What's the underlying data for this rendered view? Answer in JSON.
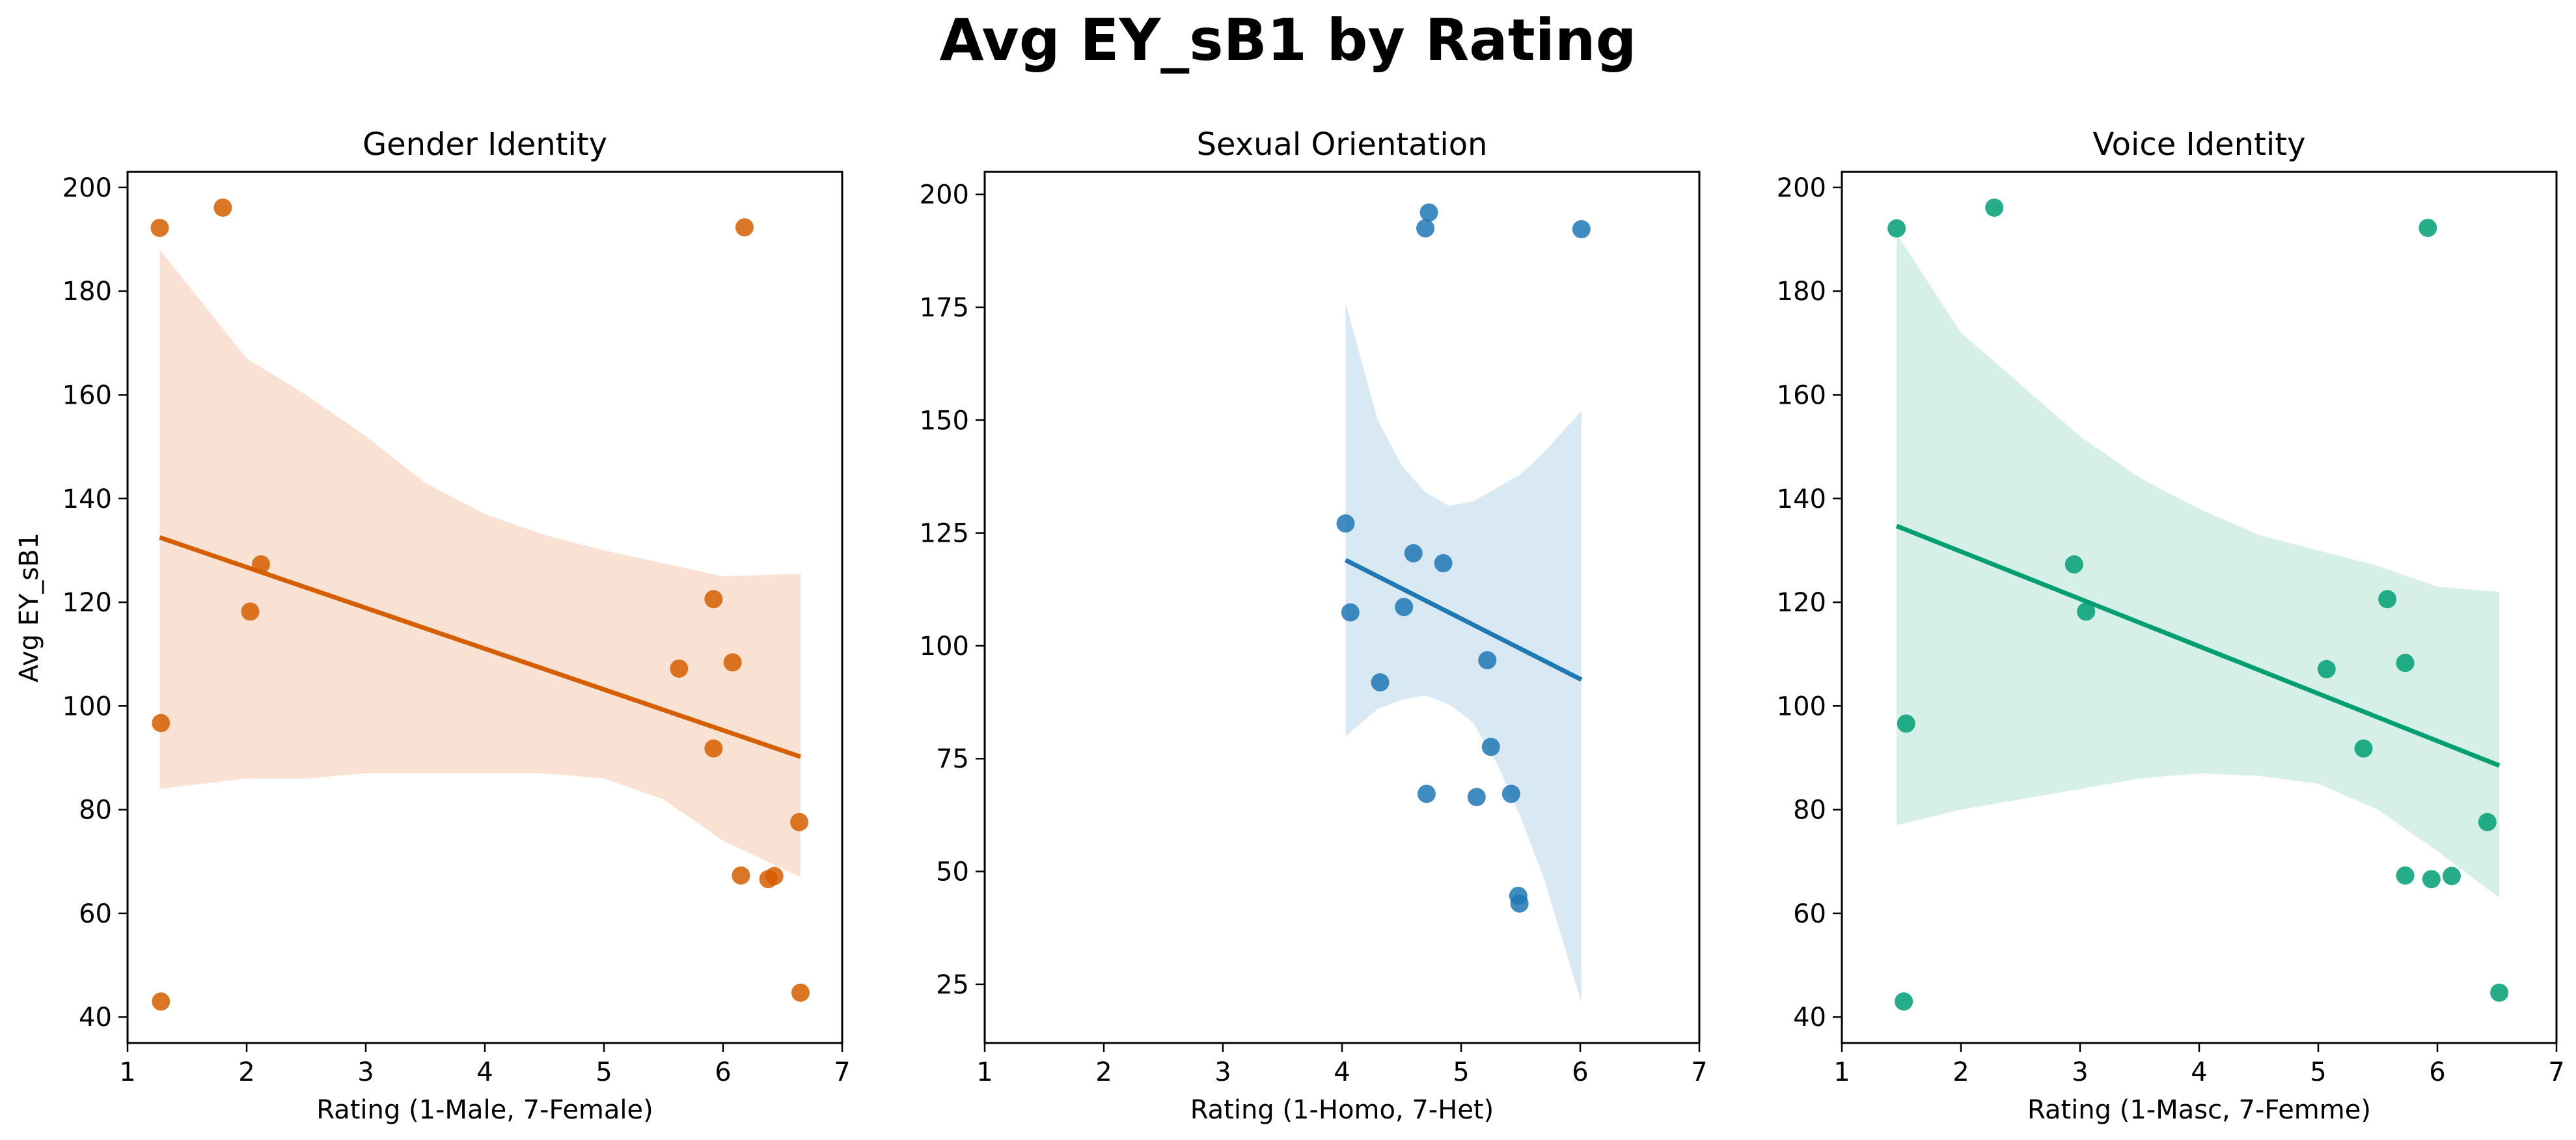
{
  "chart_data": {
    "title": "Avg EY_sB1 by Rating",
    "panels": [
      {
        "type": "scatter",
        "title": "Gender Identity",
        "xlabel": "Rating (1-Male, 7-Female)",
        "ylabel": "Avg EY_sB1",
        "xlim": [
          1,
          7
        ],
        "ylim": [
          35,
          203
        ],
        "xticks": [
          1,
          2,
          3,
          4,
          5,
          6,
          7
        ],
        "yticks": [
          40,
          60,
          80,
          100,
          120,
          140,
          160,
          180,
          200
        ],
        "color": "#d55e00",
        "band_color": "#f9e2d3",
        "points": [
          {
            "x": 1.27,
            "y": 192.2
          },
          {
            "x": 1.8,
            "y": 196.1
          },
          {
            "x": 6.18,
            "y": 192.3
          },
          {
            "x": 2.12,
            "y": 127.3
          },
          {
            "x": 2.03,
            "y": 118.2
          },
          {
            "x": 1.28,
            "y": 96.7
          },
          {
            "x": 1.28,
            "y": 43.0
          },
          {
            "x": 5.92,
            "y": 120.6
          },
          {
            "x": 5.63,
            "y": 107.2
          },
          {
            "x": 6.08,
            "y": 108.4
          },
          {
            "x": 5.92,
            "y": 91.8
          },
          {
            "x": 6.15,
            "y": 67.3
          },
          {
            "x": 6.38,
            "y": 66.6
          },
          {
            "x": 6.43,
            "y": 67.2
          },
          {
            "x": 6.64,
            "y": 77.6
          },
          {
            "x": 6.65,
            "y": 44.7
          }
        ],
        "fit": {
          "x": [
            1.27,
            6.65
          ],
          "y": [
            132.5,
            90.2
          ]
        },
        "band": {
          "x": [
            1.27,
            2.0,
            2.5,
            3.0,
            3.5,
            4.0,
            4.5,
            5.0,
            5.5,
            6.0,
            6.65
          ],
          "upper": [
            188.0,
            167.0,
            160.0,
            152.0,
            143.0,
            137.0,
            133.0,
            130.0,
            127.5,
            125.0,
            125.5
          ],
          "lower": [
            84.0,
            86.0,
            86.0,
            87.0,
            87.0,
            87.0,
            87.0,
            86.0,
            82.0,
            74.0,
            67.0
          ]
        }
      },
      {
        "type": "scatter",
        "title": "Sexual Orientation",
        "xlabel": "Rating (1-Homo, 7-Het)",
        "ylabel": "",
        "xlim": [
          1,
          7
        ],
        "ylim": [
          12,
          205
        ],
        "xticks": [
          1,
          2,
          3,
          4,
          5,
          6,
          7
        ],
        "yticks": [
          25,
          50,
          75,
          100,
          125,
          150,
          175,
          200
        ],
        "color": "#1f77b4",
        "band_color": "#d9e9f3",
        "points": [
          {
            "x": 4.73,
            "y": 196.0
          },
          {
            "x": 4.7,
            "y": 192.5
          },
          {
            "x": 6.01,
            "y": 192.3
          },
          {
            "x": 4.03,
            "y": 127.1
          },
          {
            "x": 4.6,
            "y": 120.5
          },
          {
            "x": 4.85,
            "y": 118.3
          },
          {
            "x": 4.07,
            "y": 107.4
          },
          {
            "x": 4.52,
            "y": 108.6
          },
          {
            "x": 4.32,
            "y": 91.9
          },
          {
            "x": 5.22,
            "y": 96.8
          },
          {
            "x": 5.25,
            "y": 77.6
          },
          {
            "x": 4.71,
            "y": 67.2
          },
          {
            "x": 5.13,
            "y": 66.5
          },
          {
            "x": 5.42,
            "y": 67.2
          },
          {
            "x": 5.48,
            "y": 44.6
          },
          {
            "x": 5.49,
            "y": 42.9
          }
        ],
        "fit": {
          "x": [
            4.03,
            6.01
          ],
          "y": [
            119.0,
            92.5
          ]
        },
        "band": {
          "x": [
            4.03,
            4.3,
            4.5,
            4.7,
            4.9,
            5.1,
            5.3,
            5.5,
            5.7,
            6.01
          ],
          "upper": [
            176.0,
            150.0,
            140.0,
            134.0,
            131.0,
            132.0,
            135.0,
            138.0,
            143.0,
            152.0
          ],
          "lower": [
            80.0,
            86.0,
            88.0,
            89.0,
            87.0,
            83.0,
            74.0,
            62.0,
            48.0,
            21.0
          ]
        }
      },
      {
        "type": "scatter",
        "title": "Voice Identity",
        "xlabel": "Rating (1-Masc, 7-Femme)",
        "ylabel": "",
        "xlim": [
          1,
          7
        ],
        "ylim": [
          35,
          203
        ],
        "xticks": [
          1,
          2,
          3,
          4,
          5,
          6,
          7
        ],
        "yticks": [
          40,
          60,
          80,
          100,
          120,
          140,
          160,
          180,
          200
        ],
        "color": "#009e73",
        "band_color": "#d6efe7",
        "points": [
          {
            "x": 1.46,
            "y": 192.1
          },
          {
            "x": 2.28,
            "y": 196.1
          },
          {
            "x": 5.92,
            "y": 192.2
          },
          {
            "x": 2.95,
            "y": 127.3
          },
          {
            "x": 3.05,
            "y": 118.2
          },
          {
            "x": 1.54,
            "y": 96.6
          },
          {
            "x": 1.52,
            "y": 43.0
          },
          {
            "x": 5.58,
            "y": 120.6
          },
          {
            "x": 5.07,
            "y": 107.1
          },
          {
            "x": 5.73,
            "y": 108.3
          },
          {
            "x": 5.38,
            "y": 91.8
          },
          {
            "x": 5.73,
            "y": 67.3
          },
          {
            "x": 5.95,
            "y": 66.6
          },
          {
            "x": 6.12,
            "y": 67.2
          },
          {
            "x": 6.42,
            "y": 77.6
          },
          {
            "x": 6.52,
            "y": 44.7
          }
        ],
        "fit": {
          "x": [
            1.46,
            6.52
          ],
          "y": [
            134.7,
            88.5
          ]
        },
        "band": {
          "x": [
            1.46,
            2.0,
            2.5,
            3.0,
            3.5,
            4.0,
            4.5,
            5.0,
            5.5,
            6.0,
            6.52
          ],
          "upper": [
            191.0,
            172.0,
            162.0,
            152.0,
            144.0,
            138.0,
            133.0,
            130.0,
            127.0,
            123.0,
            122.0
          ],
          "lower": [
            77.0,
            80.0,
            82.0,
            84.0,
            86.0,
            87.0,
            86.5,
            85.0,
            80.0,
            72.0,
            63.0
          ]
        }
      }
    ]
  }
}
